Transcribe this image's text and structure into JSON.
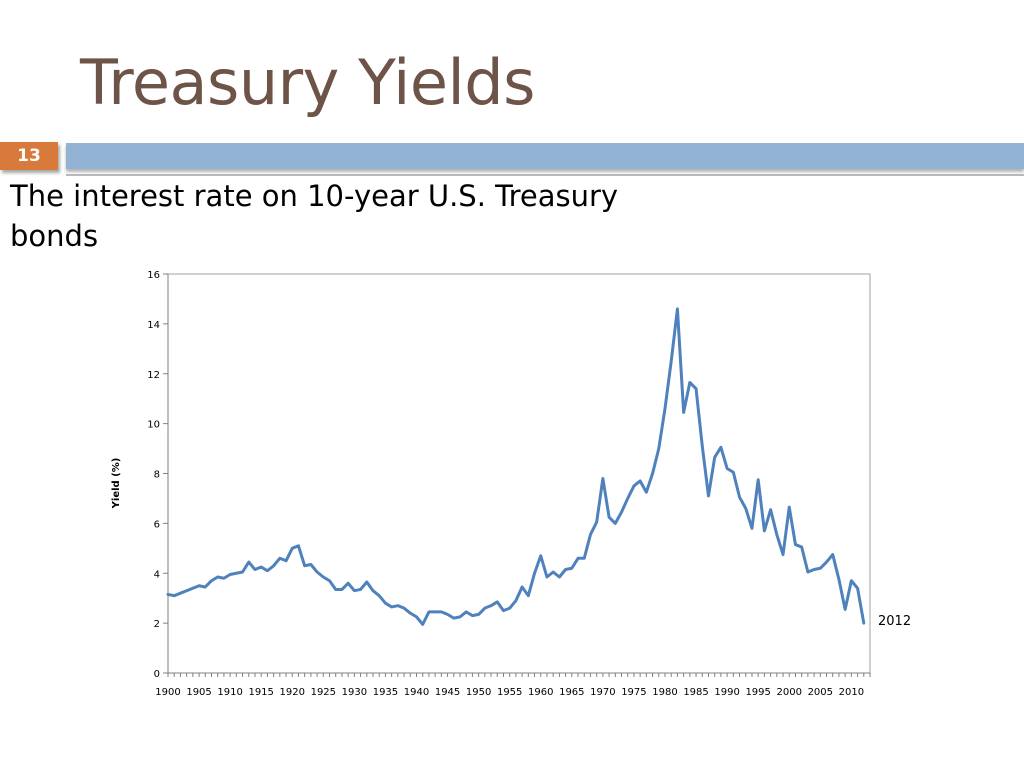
{
  "slide": {
    "title": "Treasury Yields",
    "number": "13",
    "subtitle": "The interest rate on 10-year U.S. Treasury bonds"
  },
  "colors": {
    "title": "#6e5448",
    "accent_orange": "#d97a3d",
    "header_bar": "#93b3d5",
    "line": "#4f81bd"
  },
  "chart_data": {
    "type": "line",
    "title": "",
    "xlabel": "",
    "ylabel": "Yield (%)",
    "ylim": [
      0,
      16
    ],
    "y_ticks": [
      0,
      2,
      4,
      6,
      8,
      10,
      12,
      14,
      16
    ],
    "xlim": [
      1900,
      2013
    ],
    "x_ticks": [
      1900,
      1905,
      1910,
      1915,
      1920,
      1925,
      1930,
      1935,
      1940,
      1945,
      1950,
      1955,
      1960,
      1965,
      1970,
      1975,
      1980,
      1985,
      1990,
      1995,
      2000,
      2005,
      2010
    ],
    "grid": false,
    "legend": "none",
    "end_annotation": "2012",
    "series": [
      {
        "x": [
          1900,
          1901,
          1902,
          1903,
          1904,
          1905,
          1906,
          1907,
          1908,
          1909,
          1910,
          1911,
          1912,
          1913,
          1914,
          1915,
          1916,
          1917,
          1918,
          1919,
          1920,
          1921,
          1922,
          1923,
          1924,
          1925,
          1926,
          1927,
          1928,
          1929,
          1930,
          1931,
          1932,
          1933,
          1934,
          1935,
          1936,
          1937,
          1938,
          1939,
          1940,
          1941,
          1942,
          1943,
          1944,
          1945,
          1946,
          1947,
          1948,
          1949,
          1950,
          1951,
          1952,
          1953,
          1954,
          1955,
          1956,
          1957,
          1958,
          1959,
          1960,
          1961,
          1962,
          1963,
          1964,
          1965,
          1966,
          1967,
          1968,
          1969,
          1970,
          1971,
          1972,
          1973,
          1974,
          1975,
          1976,
          1977,
          1978,
          1979,
          1980,
          1981,
          1982,
          1983,
          1984,
          1985,
          1986,
          1987,
          1988,
          1989,
          1990,
          1991,
          1992,
          1993,
          1994,
          1995,
          1996,
          1997,
          1998,
          1999,
          2000,
          2001,
          2002,
          2003,
          2004,
          2005,
          2006,
          2007,
          2008,
          2009,
          2010,
          2011,
          2012
        ],
        "values": [
          3.15,
          3.1,
          3.2,
          3.3,
          3.4,
          3.5,
          3.45,
          3.7,
          3.85,
          3.8,
          3.95,
          4.0,
          4.05,
          4.45,
          4.15,
          4.25,
          4.1,
          4.3,
          4.6,
          4.5,
          5.0,
          5.1,
          4.3,
          4.35,
          4.05,
          3.85,
          3.7,
          3.35,
          3.35,
          3.6,
          3.3,
          3.35,
          3.65,
          3.3,
          3.1,
          2.8,
          2.65,
          2.7,
          2.6,
          2.4,
          2.25,
          1.95,
          2.45,
          2.45,
          2.45,
          2.35,
          2.2,
          2.25,
          2.45,
          2.3,
          2.35,
          2.6,
          2.7,
          2.85,
          2.5,
          2.6,
          2.9,
          3.45,
          3.1,
          4.0,
          4.7,
          3.85,
          4.05,
          3.85,
          4.15,
          4.2,
          4.6,
          4.6,
          5.55,
          6.05,
          7.8,
          6.25,
          6.0,
          6.45,
          7.0,
          7.5,
          7.7,
          7.25,
          8.0,
          9.0,
          10.6,
          12.5,
          14.6,
          10.45,
          11.65,
          11.4,
          9.1,
          7.1,
          8.65,
          9.05,
          8.2,
          8.05,
          7.05,
          6.6,
          5.8,
          7.75,
          5.7,
          6.55,
          5.55,
          4.75,
          6.65,
          5.15,
          5.05,
          4.05,
          4.15,
          4.2,
          4.45,
          4.75,
          3.75,
          2.55,
          3.7,
          3.4,
          2.0
        ]
      }
    ]
  }
}
